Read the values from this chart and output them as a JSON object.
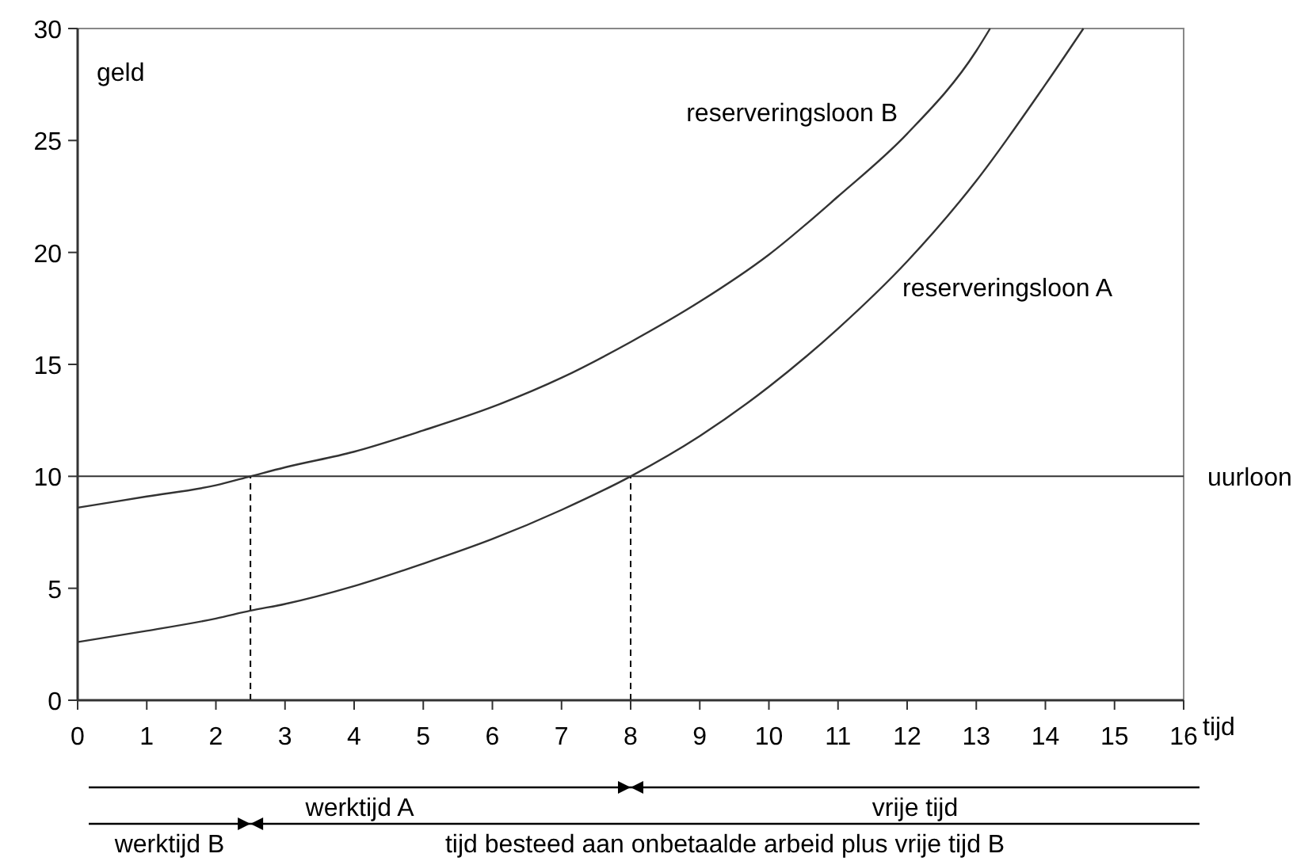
{
  "chart_data": {
    "type": "line",
    "xlabel": "tijd",
    "ylabel": "geld",
    "x": [
      0,
      1,
      2,
      2.5,
      3,
      4,
      5,
      6,
      7,
      8,
      9,
      10,
      11,
      12,
      13,
      13.2
    ],
    "series": [
      {
        "name": "reserveringsloon B",
        "color": "#333333",
        "values": [
          8.6,
          9.1,
          9.6,
          10,
          10.4,
          11.1,
          12.05,
          13.1,
          14.4,
          16,
          17.8,
          19.9,
          22.5,
          25.3,
          29,
          30
        ]
      },
      {
        "name": "reserveringsloon A",
        "color": "#333333",
        "x": [
          0,
          1,
          2,
          2.5,
          3,
          4,
          5,
          6,
          7,
          8,
          9,
          10,
          11,
          12,
          13,
          14,
          14.55
        ],
        "values": [
          2.6,
          3.1,
          3.65,
          4,
          4.3,
          5.1,
          6.1,
          7.2,
          8.5,
          10,
          11.8,
          14,
          16.6,
          19.6,
          23.2,
          27.5,
          30
        ]
      }
    ],
    "xlim": [
      0,
      16
    ],
    "xticks": [
      0,
      1,
      2,
      3,
      4,
      5,
      6,
      7,
      8,
      9,
      10,
      11,
      12,
      13,
      14,
      15,
      16
    ],
    "ylim": [
      0,
      30
    ],
    "yticks": [
      0,
      5,
      10,
      15,
      20,
      25,
      30
    ],
    "grid": false,
    "marker": "none",
    "line_style": "solid",
    "ref_lines": [
      {
        "axis": "y",
        "value": 10,
        "label": "uurloon",
        "line_style": "solid"
      },
      {
        "axis": "x",
        "value": 2.5,
        "label": null,
        "line_style": "dashed"
      },
      {
        "axis": "x",
        "value": 8,
        "label": null,
        "line_style": "dashed"
      }
    ],
    "annotations": [
      "werktijd A",
      "vrije tijd",
      "werktijd B",
      "tijd besteed aan onbetaalde arbeid plus vrije tijd B"
    ]
  }
}
